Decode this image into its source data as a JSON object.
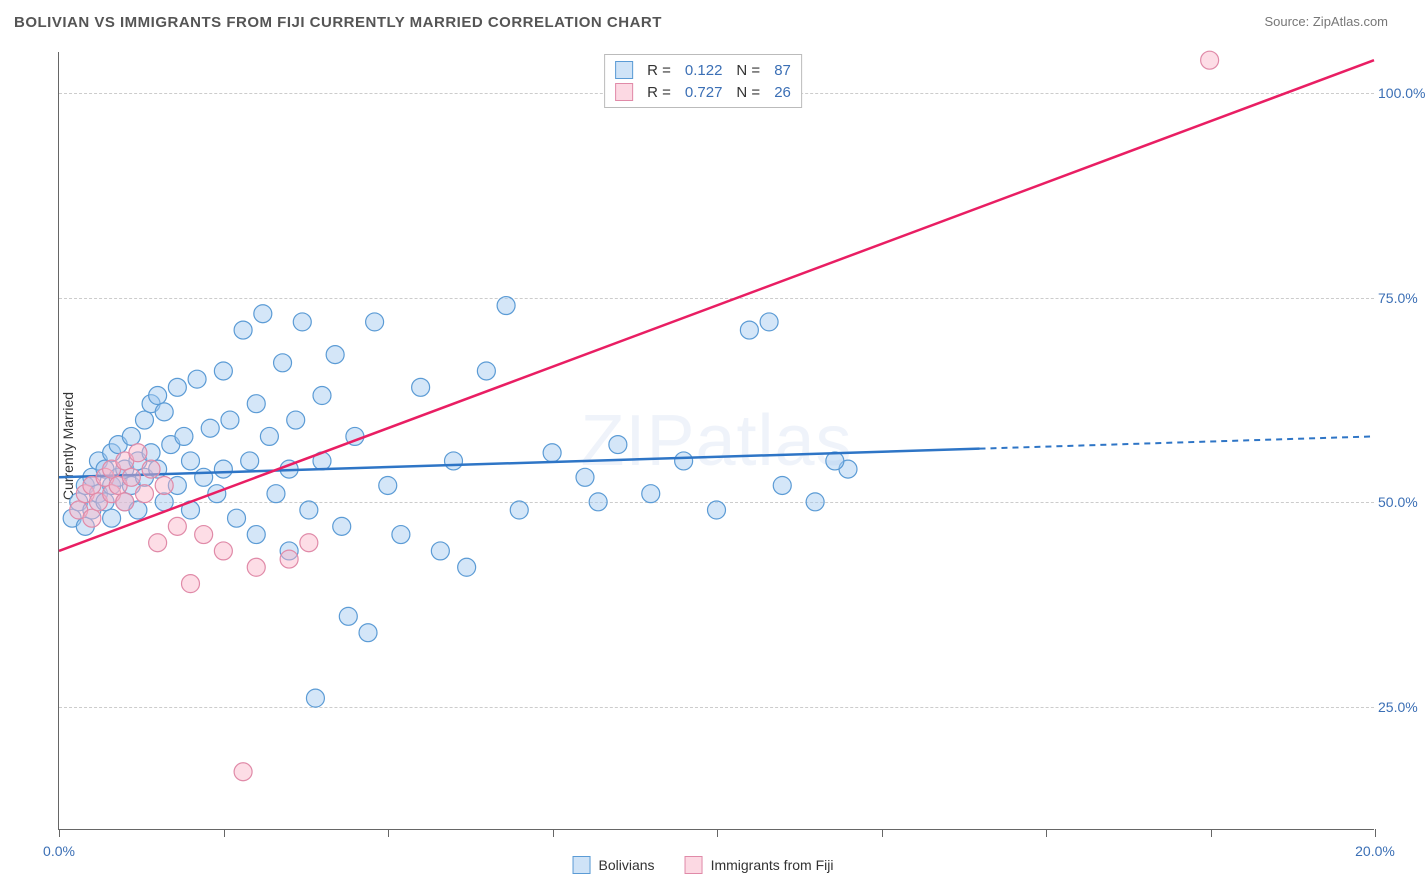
{
  "title": "BOLIVIAN VS IMMIGRANTS FROM FIJI CURRENTLY MARRIED CORRELATION CHART",
  "source": "Source: ZipAtlas.com",
  "ylabel": "Currently Married",
  "watermark": "ZIPatlas",
  "chart": {
    "type": "scatter",
    "xlim": [
      0,
      20
    ],
    "ylim": [
      10,
      105
    ],
    "xticks": [
      0,
      2.5,
      5,
      7.5,
      10,
      12.5,
      15,
      17.5,
      20
    ],
    "xtick_labels_visible": {
      "0": "0.0%",
      "20": "20.0%"
    },
    "yticks": [
      25,
      50,
      75,
      100
    ],
    "ytick_labels": [
      "25.0%",
      "50.0%",
      "75.0%",
      "100.0%"
    ],
    "background_color": "#ffffff",
    "grid_color": "#cccccc",
    "axis_color": "#666666",
    "series": [
      {
        "name": "Bolivians",
        "marker_fill": "rgba(160,200,240,0.45)",
        "marker_stroke": "#5b9bd5",
        "line_color": "#2e75c6",
        "line_dash_after_x": 14,
        "R": "0.122",
        "N": "87",
        "regression": {
          "x1": 0,
          "y1": 53,
          "x2": 20,
          "y2": 58
        },
        "points": [
          [
            0.2,
            48
          ],
          [
            0.3,
            50
          ],
          [
            0.4,
            47
          ],
          [
            0.4,
            52
          ],
          [
            0.5,
            53
          ],
          [
            0.5,
            49
          ],
          [
            0.6,
            55
          ],
          [
            0.6,
            51
          ],
          [
            0.7,
            54
          ],
          [
            0.7,
            50
          ],
          [
            0.8,
            56
          ],
          [
            0.8,
            52
          ],
          [
            0.8,
            48
          ],
          [
            0.9,
            53
          ],
          [
            0.9,
            57
          ],
          [
            1.0,
            54
          ],
          [
            1.0,
            50
          ],
          [
            1.1,
            58
          ],
          [
            1.1,
            52
          ],
          [
            1.2,
            55
          ],
          [
            1.2,
            49
          ],
          [
            1.3,
            60
          ],
          [
            1.3,
            53
          ],
          [
            1.4,
            62
          ],
          [
            1.4,
            56
          ],
          [
            1.5,
            63
          ],
          [
            1.5,
            54
          ],
          [
            1.6,
            61
          ],
          [
            1.6,
            50
          ],
          [
            1.7,
            57
          ],
          [
            1.8,
            64
          ],
          [
            1.8,
            52
          ],
          [
            1.9,
            58
          ],
          [
            2.0,
            55
          ],
          [
            2.0,
            49
          ],
          [
            2.1,
            65
          ],
          [
            2.2,
            53
          ],
          [
            2.3,
            59
          ],
          [
            2.4,
            51
          ],
          [
            2.5,
            66
          ],
          [
            2.5,
            54
          ],
          [
            2.6,
            60
          ],
          [
            2.7,
            48
          ],
          [
            2.8,
            71
          ],
          [
            2.9,
            55
          ],
          [
            3.0,
            62
          ],
          [
            3.0,
            46
          ],
          [
            3.1,
            73
          ],
          [
            3.2,
            58
          ],
          [
            3.3,
            51
          ],
          [
            3.4,
            67
          ],
          [
            3.5,
            54
          ],
          [
            3.5,
            44
          ],
          [
            3.6,
            60
          ],
          [
            3.7,
            72
          ],
          [
            3.8,
            49
          ],
          [
            3.9,
            26
          ],
          [
            4.0,
            63
          ],
          [
            4.0,
            55
          ],
          [
            4.2,
            68
          ],
          [
            4.3,
            47
          ],
          [
            4.4,
            36
          ],
          [
            4.5,
            58
          ],
          [
            4.7,
            34
          ],
          [
            4.8,
            72
          ],
          [
            5.0,
            52
          ],
          [
            5.2,
            46
          ],
          [
            5.5,
            64
          ],
          [
            5.8,
            44
          ],
          [
            6.0,
            55
          ],
          [
            6.2,
            42
          ],
          [
            6.5,
            66
          ],
          [
            6.8,
            74
          ],
          [
            7.0,
            49
          ],
          [
            7.5,
            56
          ],
          [
            8.0,
            53
          ],
          [
            8.2,
            50
          ],
          [
            8.5,
            57
          ],
          [
            9.0,
            51
          ],
          [
            9.5,
            55
          ],
          [
            10.0,
            49
          ],
          [
            10.5,
            71
          ],
          [
            11.0,
            52
          ],
          [
            11.5,
            50
          ],
          [
            12.0,
            54
          ],
          [
            11.8,
            55
          ],
          [
            10.8,
            72
          ]
        ]
      },
      {
        "name": "Immigrants from Fiji",
        "marker_fill": "rgba(250,180,200,0.45)",
        "marker_stroke": "#e08aa8",
        "line_color": "#e91e63",
        "line_dash_after_x": null,
        "R": "0.727",
        "N": "26",
        "regression": {
          "x1": 0,
          "y1": 44,
          "x2": 20,
          "y2": 104
        },
        "points": [
          [
            0.3,
            49
          ],
          [
            0.4,
            51
          ],
          [
            0.5,
            48
          ],
          [
            0.5,
            52
          ],
          [
            0.6,
            50
          ],
          [
            0.7,
            53
          ],
          [
            0.8,
            51
          ],
          [
            0.8,
            54
          ],
          [
            0.9,
            52
          ],
          [
            1.0,
            55
          ],
          [
            1.0,
            50
          ],
          [
            1.1,
            53
          ],
          [
            1.2,
            56
          ],
          [
            1.3,
            51
          ],
          [
            1.4,
            54
          ],
          [
            1.5,
            45
          ],
          [
            1.6,
            52
          ],
          [
            1.8,
            47
          ],
          [
            2.0,
            40
          ],
          [
            2.2,
            46
          ],
          [
            2.5,
            44
          ],
          [
            2.8,
            17
          ],
          [
            3.0,
            42
          ],
          [
            3.5,
            43
          ],
          [
            3.8,
            45
          ],
          [
            17.5,
            104
          ]
        ]
      }
    ]
  },
  "legend_top": [
    {
      "swatch_fill": "rgba(160,200,240,0.5)",
      "swatch_border": "#5b9bd5",
      "R_label": "R =",
      "R": "0.122",
      "N_label": "N =",
      "N": "87"
    },
    {
      "swatch_fill": "rgba(250,180,200,0.5)",
      "swatch_border": "#e08aa8",
      "R_label": "R =",
      "R": "0.727",
      "N_label": "N =",
      "N": "26"
    }
  ],
  "legend_bottom": [
    {
      "swatch_fill": "rgba(160,200,240,0.5)",
      "swatch_border": "#5b9bd5",
      "label": "Bolivians"
    },
    {
      "swatch_fill": "rgba(250,180,200,0.5)",
      "swatch_border": "#e08aa8",
      "label": "Immigrants from Fiji"
    }
  ]
}
